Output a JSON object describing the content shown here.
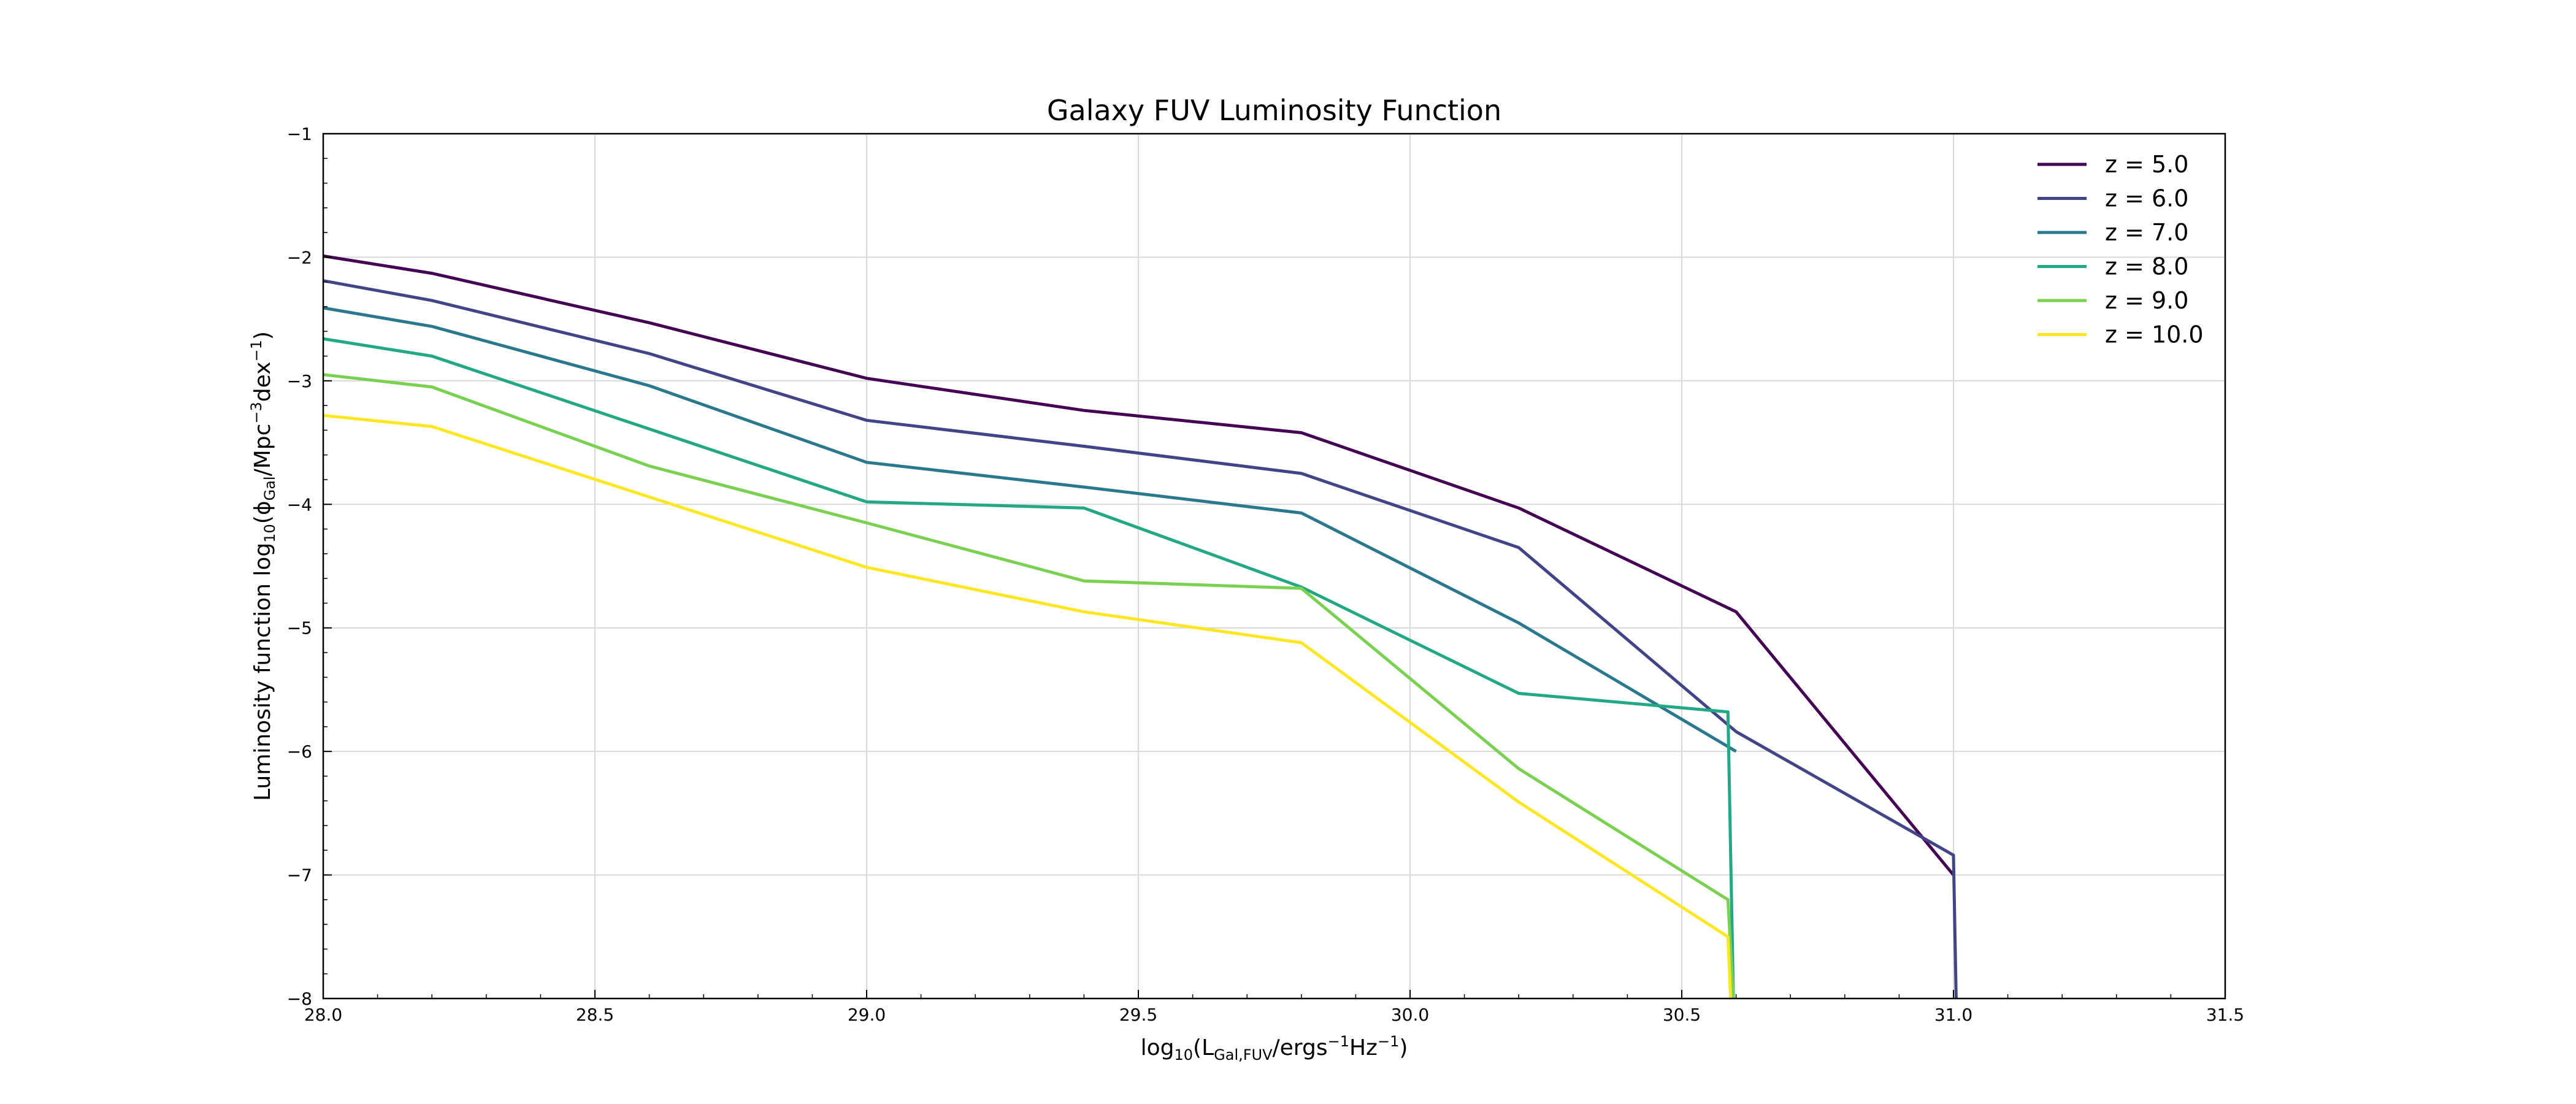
{
  "chart_data": {
    "type": "line",
    "title": "Galaxy FUV Luminosity Function",
    "xlabel": {
      "prefix": "log",
      "sub1": "10",
      "open": "(L",
      "sub2": "Gal,FUV",
      "mid": "/ergs",
      "sup1": "−1",
      "mid2": "Hz",
      "sup2": "−1",
      "close": ")"
    },
    "ylabel": {
      "text": "Luminosity function ",
      "prefix": "log",
      "sub1": "10",
      "open": "(ϕ",
      "sub2": "Gal",
      "mid": "/Mpc",
      "sup1": "−3",
      "mid2": "dex",
      "sup2": "−1",
      "close": ")"
    },
    "xlim": [
      28.0,
      31.5
    ],
    "ylim": [
      -8,
      -1
    ],
    "xticks": [
      28.0,
      28.5,
      29.0,
      29.5,
      30.0,
      30.5,
      31.0,
      31.5
    ],
    "xtick_labels": [
      "28.0",
      "28.5",
      "29.0",
      "29.5",
      "30.0",
      "30.5",
      "31.0",
      "31.5"
    ],
    "yticks": [
      -8,
      -7,
      -6,
      -5,
      -4,
      -3,
      -2,
      -1
    ],
    "ytick_labels": [
      "−8",
      "−7",
      "−6",
      "−5",
      "−4",
      "−3",
      "−2",
      "−1"
    ],
    "grid": true,
    "legend_position": "top-right",
    "series": [
      {
        "name": "z = 5.0",
        "color": "#440154",
        "points": [
          [
            28.0,
            -1.99
          ],
          [
            28.2,
            -2.13
          ],
          [
            28.6,
            -2.53
          ],
          [
            29.0,
            -2.98
          ],
          [
            29.4,
            -3.24
          ],
          [
            29.8,
            -3.42
          ],
          [
            30.2,
            -4.03
          ],
          [
            30.6,
            -4.87
          ],
          [
            31.0,
            -7.0
          ]
        ]
      },
      {
        "name": "z = 6.0",
        "color": "#414487",
        "points": [
          [
            28.0,
            -2.19
          ],
          [
            28.2,
            -2.35
          ],
          [
            28.6,
            -2.78
          ],
          [
            29.0,
            -3.32
          ],
          [
            29.4,
            -3.53
          ],
          [
            29.8,
            -3.75
          ],
          [
            30.2,
            -4.35
          ],
          [
            30.6,
            -5.84
          ],
          [
            31.0,
            -6.84
          ],
          [
            31.005,
            -8.0
          ]
        ]
      },
      {
        "name": "z = 7.0",
        "color": "#2a788e",
        "points": [
          [
            28.0,
            -2.41
          ],
          [
            28.2,
            -2.56
          ],
          [
            28.6,
            -3.04
          ],
          [
            29.0,
            -3.66
          ],
          [
            29.4,
            -3.86
          ],
          [
            29.8,
            -4.07
          ],
          [
            30.2,
            -4.96
          ],
          [
            30.6,
            -6.0
          ]
        ]
      },
      {
        "name": "z = 8.0",
        "color": "#22a884",
        "points": [
          [
            28.0,
            -2.66
          ],
          [
            28.2,
            -2.8
          ],
          [
            28.6,
            -3.39
          ],
          [
            29.0,
            -3.98
          ],
          [
            29.4,
            -4.03
          ],
          [
            29.8,
            -4.67
          ],
          [
            30.2,
            -5.53
          ],
          [
            30.585,
            -5.68
          ],
          [
            30.595,
            -8.0
          ]
        ]
      },
      {
        "name": "z = 9.0",
        "color": "#7ad151",
        "points": [
          [
            28.0,
            -2.95
          ],
          [
            28.2,
            -3.05
          ],
          [
            28.6,
            -3.69
          ],
          [
            29.0,
            -4.15
          ],
          [
            29.4,
            -4.62
          ],
          [
            29.8,
            -4.68
          ],
          [
            30.2,
            -6.14
          ],
          [
            30.585,
            -7.2
          ],
          [
            30.595,
            -8.0
          ]
        ]
      },
      {
        "name": "z = 10.0",
        "color": "#fde725",
        "points": [
          [
            28.0,
            -3.28
          ],
          [
            28.2,
            -3.37
          ],
          [
            28.6,
            -3.94
          ],
          [
            29.0,
            -4.51
          ],
          [
            29.4,
            -4.87
          ],
          [
            29.8,
            -5.12
          ],
          [
            30.2,
            -6.41
          ],
          [
            30.585,
            -7.5
          ],
          [
            30.59,
            -8.0
          ]
        ]
      }
    ]
  }
}
